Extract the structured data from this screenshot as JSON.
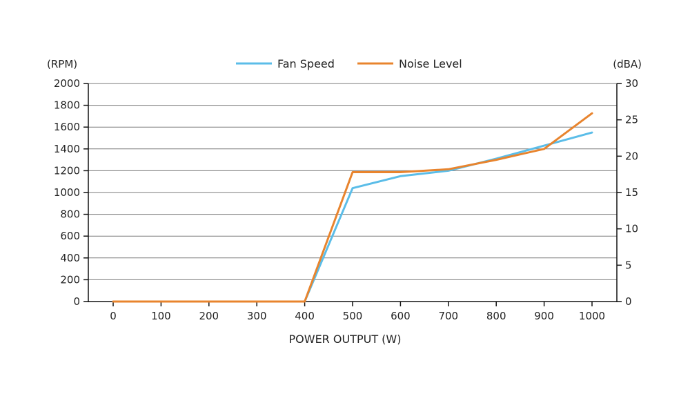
{
  "chart_data": {
    "type": "line",
    "xlabel": "POWER OUTPUT (W)",
    "y_left_label": "(RPM)",
    "y_right_label": "(dBA)",
    "x": [
      0,
      100,
      200,
      300,
      400,
      500,
      600,
      700,
      800,
      900,
      1000
    ],
    "xlim": [
      0,
      1000
    ],
    "x_ticks": [
      "0",
      "100",
      "200",
      "300",
      "400",
      "500",
      "600",
      "700",
      "800",
      "900",
      "1000"
    ],
    "y_left_lim": [
      0,
      2000
    ],
    "y_left_ticks": [
      "0",
      "200",
      "400",
      "600",
      "800",
      "1000",
      "1200",
      "1400",
      "1600",
      "1800",
      "2000"
    ],
    "y_right_lim": [
      0,
      30
    ],
    "y_right_ticks": [
      "0",
      "5",
      "10",
      "15",
      "20",
      "25",
      "30"
    ],
    "grid": true,
    "legend_position": "top-center",
    "series": [
      {
        "name": "Fan Speed",
        "axis": "left",
        "color": "#5bbde8",
        "points": [
          [
            0,
            0
          ],
          [
            400,
            0
          ],
          [
            500,
            1040
          ],
          [
            600,
            1150
          ],
          [
            700,
            1200
          ],
          [
            800,
            1310
          ],
          [
            900,
            1430
          ],
          [
            1000,
            1550
          ]
        ]
      },
      {
        "name": "Noise Level",
        "axis": "right",
        "color": "#e8842e",
        "points": [
          [
            0,
            0
          ],
          [
            400,
            0
          ],
          [
            500,
            17.8
          ],
          [
            600,
            17.8
          ],
          [
            700,
            18.2
          ],
          [
            800,
            19.5
          ],
          [
            900,
            21.0
          ],
          [
            1000,
            25.9
          ]
        ]
      }
    ]
  }
}
